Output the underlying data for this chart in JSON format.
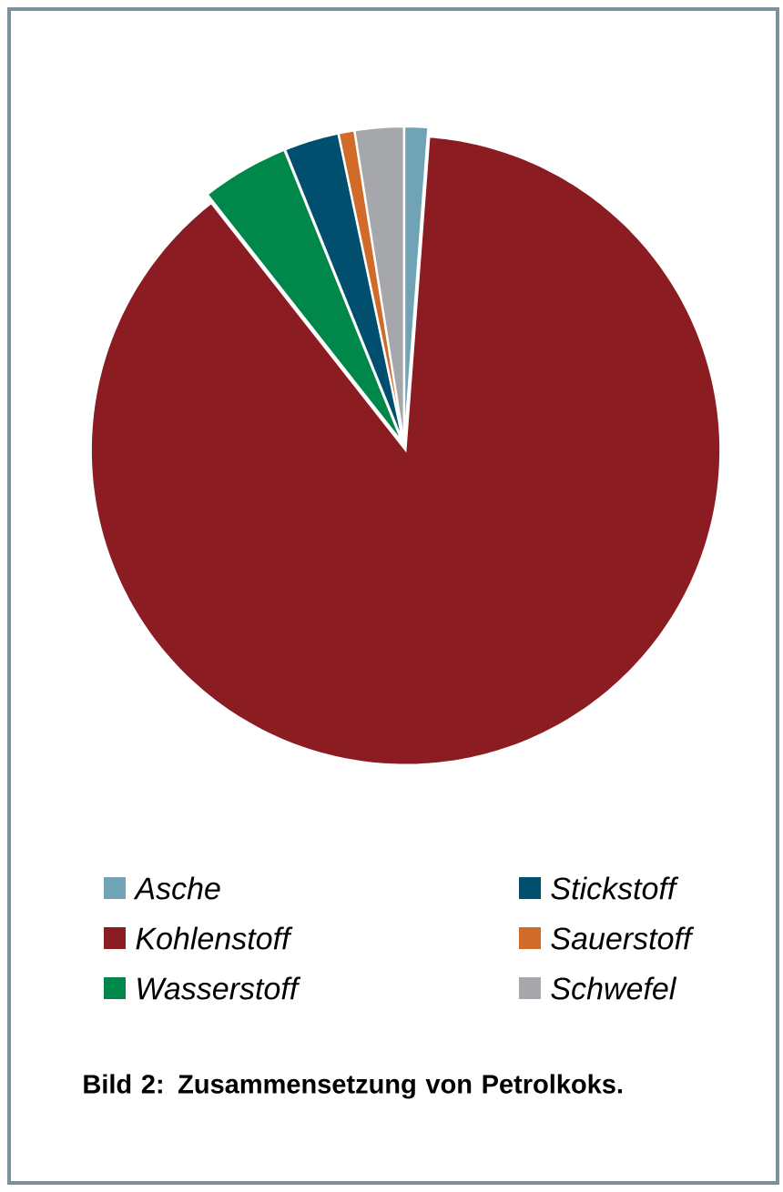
{
  "chart_data": {
    "type": "pie",
    "title": "Bild 2: Zusammensetzung von Petrolkoks.",
    "categories": [
      "Asche",
      "Kohlenstoff",
      "Wasserstoff",
      "Stickstoff",
      "Sauerstoff",
      "Schwefel"
    ],
    "values": [
      1.2,
      88.2,
      4.5,
      2.8,
      0.8,
      2.5
    ],
    "colors": [
      "#6fa3b5",
      "#8b1c22",
      "#00874a",
      "#004f6e",
      "#d06b2a",
      "#a6a7ab"
    ],
    "legend": "bottom"
  }
}
